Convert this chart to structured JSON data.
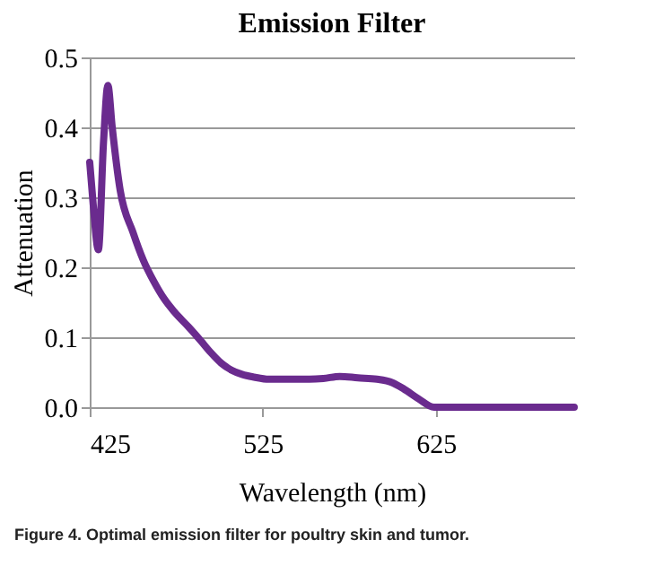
{
  "chart_data": {
    "type": "line",
    "title": "Emission Filter",
    "xlabel": "Wavelength (nm)",
    "ylabel": "Attenuation",
    "x": [
      425,
      427,
      430,
      433,
      435.5,
      438,
      442.6,
      450,
      456,
      462,
      468,
      474,
      482,
      489.5,
      495,
      501,
      507,
      513,
      520,
      528.5,
      540,
      552,
      560,
      569.5,
      580,
      591,
      600,
      606.6,
      615,
      624,
      640,
      660,
      680,
      705
    ],
    "series": [
      {
        "color": "#6a2b8e",
        "values": [
          0.35,
          0.29,
          0.225,
          0.38,
          0.46,
          0.4,
          0.31,
          0.25,
          0.21,
          0.18,
          0.155,
          0.136,
          0.115,
          0.094,
          0.078,
          0.063,
          0.053,
          0.047,
          0.043,
          0.04,
          0.04,
          0.04,
          0.041,
          0.044,
          0.042,
          0.04,
          0.035,
          0.026,
          0.012,
          0,
          0,
          0,
          0,
          0
        ]
      }
    ],
    "xlim": [
      425,
      705
    ],
    "xticks": [
      425,
      525,
      625
    ],
    "ylim": [
      0,
      0.5
    ],
    "yticks": [
      {
        "value": 0,
        "label": "0.0"
      },
      {
        "value": 0.1,
        "label": "0.1"
      },
      {
        "value": 0.2,
        "label": "0.2"
      },
      {
        "value": 0.3,
        "label": "0.3"
      },
      {
        "value": 0.4,
        "label": "0.4"
      },
      {
        "value": 0.5,
        "label": "0.5"
      }
    ],
    "grid": "y",
    "annotations": [
      "Figure 4. Optimal emission filter for poultry skin and tumor."
    ]
  }
}
